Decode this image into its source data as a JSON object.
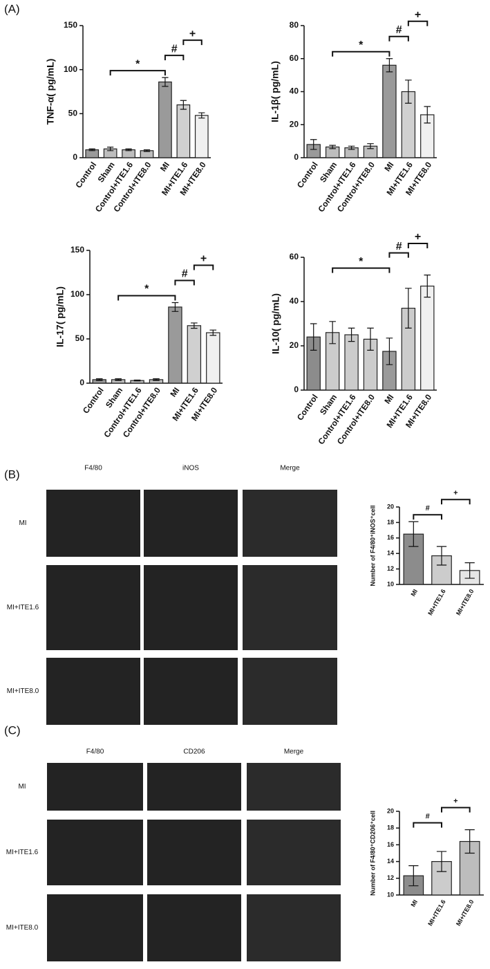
{
  "panels": [
    {
      "label": "(A)"
    },
    {
      "label": "(B)",
      "columns": [
        "F4/80",
        "iNOS",
        "Merge"
      ],
      "rows": [
        "MI",
        "MI+ITE1.6",
        "MI+ITE8.0"
      ]
    },
    {
      "label": "(C)",
      "columns": [
        "F4/80",
        "CD206",
        "Merge"
      ],
      "rows": [
        "MI",
        "MI+ITE1.6",
        "MI+ITE8.0"
      ]
    }
  ],
  "chart_data": [
    {
      "type": "bar",
      "y_label": "TNF-α( pg/mL)",
      "categories": [
        "Control",
        "Sham",
        "Control+ITE1.6",
        "Control+ITE8.0",
        "MI",
        "MI+ITE1.6",
        "MI+ITE8.0"
      ],
      "values": [
        9,
        10,
        9,
        8,
        86,
        60,
        48
      ],
      "errors": [
        1,
        2,
        1,
        1,
        5,
        5,
        3
      ],
      "colors": [
        "#9a9a9a",
        "#bdbdbd",
        "#bdbdbd",
        "#bdbdbd",
        "#9a9a9a",
        "#d0d0d0",
        "#f0f0f0"
      ],
      "ylim": [
        0,
        150
      ],
      "yticks": [
        0,
        50,
        100,
        150
      ],
      "annotations": [
        "*",
        "#",
        "+"
      ]
    },
    {
      "type": "bar",
      "y_label": "IL-1β( pg/mL)",
      "categories": [
        "Control",
        "Sham",
        "Control+ITE1.6",
        "Control+ITE8.0",
        "MI",
        "MI+ITE1.6",
        "MI+ITE8.0"
      ],
      "values": [
        8,
        6.5,
        6,
        7,
        56,
        40,
        26
      ],
      "errors": [
        3,
        1,
        1,
        1.5,
        4,
        7,
        5
      ],
      "colors": [
        "#9a9a9a",
        "#bdbdbd",
        "#bdbdbd",
        "#bdbdbd",
        "#9a9a9a",
        "#d0d0d0",
        "#f0f0f0"
      ],
      "ylim": [
        0,
        80
      ],
      "yticks": [
        0,
        20,
        40,
        60,
        80
      ],
      "annotations": [
        "*",
        "#",
        "+"
      ]
    },
    {
      "type": "bar",
      "y_label": "IL-17( pg/mL)",
      "categories": [
        "Control",
        "Sham",
        "Control+ITE1.6",
        "Control+ITE8.0",
        "MI",
        "MI+ITE1.6",
        "MI+ITE8.0"
      ],
      "values": [
        4,
        4,
        3,
        4,
        86,
        65,
        57
      ],
      "errors": [
        1,
        1,
        0.5,
        1,
        5,
        3,
        3
      ],
      "colors": [
        "#9a9a9a",
        "#bdbdbd",
        "#bdbdbd",
        "#bdbdbd",
        "#9a9a9a",
        "#d0d0d0",
        "#f0f0f0"
      ],
      "ylim": [
        0,
        150
      ],
      "yticks": [
        0,
        50,
        100,
        150
      ],
      "annotations": [
        "*",
        "#",
        "+"
      ]
    },
    {
      "type": "bar",
      "y_label": "IL-10( pg/mL)",
      "categories": [
        "Control",
        "Sham",
        "Control+ITE1.6",
        "Control+ITE8.0",
        "MI",
        "MI+ITE1.6",
        "MI+ITE8.0"
      ],
      "values": [
        24,
        26,
        25,
        23,
        17.5,
        37,
        47
      ],
      "errors": [
        6,
        5,
        3,
        5,
        6,
        9,
        5
      ],
      "colors": [
        "#8c8c8c",
        "#cccccc",
        "#cccccc",
        "#cccccc",
        "#9a9a9a",
        "#cccccc",
        "#f0f0f0"
      ],
      "ylim": [
        0,
        60
      ],
      "yticks": [
        0,
        20,
        40,
        60
      ],
      "annotations": [
        "*",
        "#",
        "+"
      ]
    },
    {
      "type": "bar",
      "y_label": "Number of F4/80⁺iNOS⁺cell",
      "categories": [
        "MI",
        "MI+ITE1.6",
        "MI+ITE8.0"
      ],
      "values": [
        16.5,
        13.7,
        11.8
      ],
      "errors": [
        1.6,
        1.2,
        1.0
      ],
      "colors": [
        "#8c8c8c",
        "#cccccc",
        "#e6e6e6"
      ],
      "ylim": [
        10,
        20
      ],
      "yticks": [
        10,
        12,
        14,
        16,
        18,
        20
      ],
      "annotations": [
        "#",
        "+"
      ]
    },
    {
      "type": "bar",
      "y_label": "Number of F4/80⁺CD206⁺cell",
      "categories": [
        "MI",
        "MI+ITE1.6",
        "MI+ITE8.0"
      ],
      "values": [
        12.3,
        14,
        16.4
      ],
      "errors": [
        1.2,
        1.2,
        1.4
      ],
      "colors": [
        "#8c8c8c",
        "#cccccc",
        "#bdbdbd"
      ],
      "ylim": [
        10,
        20
      ],
      "yticks": [
        10,
        12,
        14,
        16,
        18,
        20
      ],
      "annotations": [
        "#",
        "+"
      ]
    }
  ]
}
